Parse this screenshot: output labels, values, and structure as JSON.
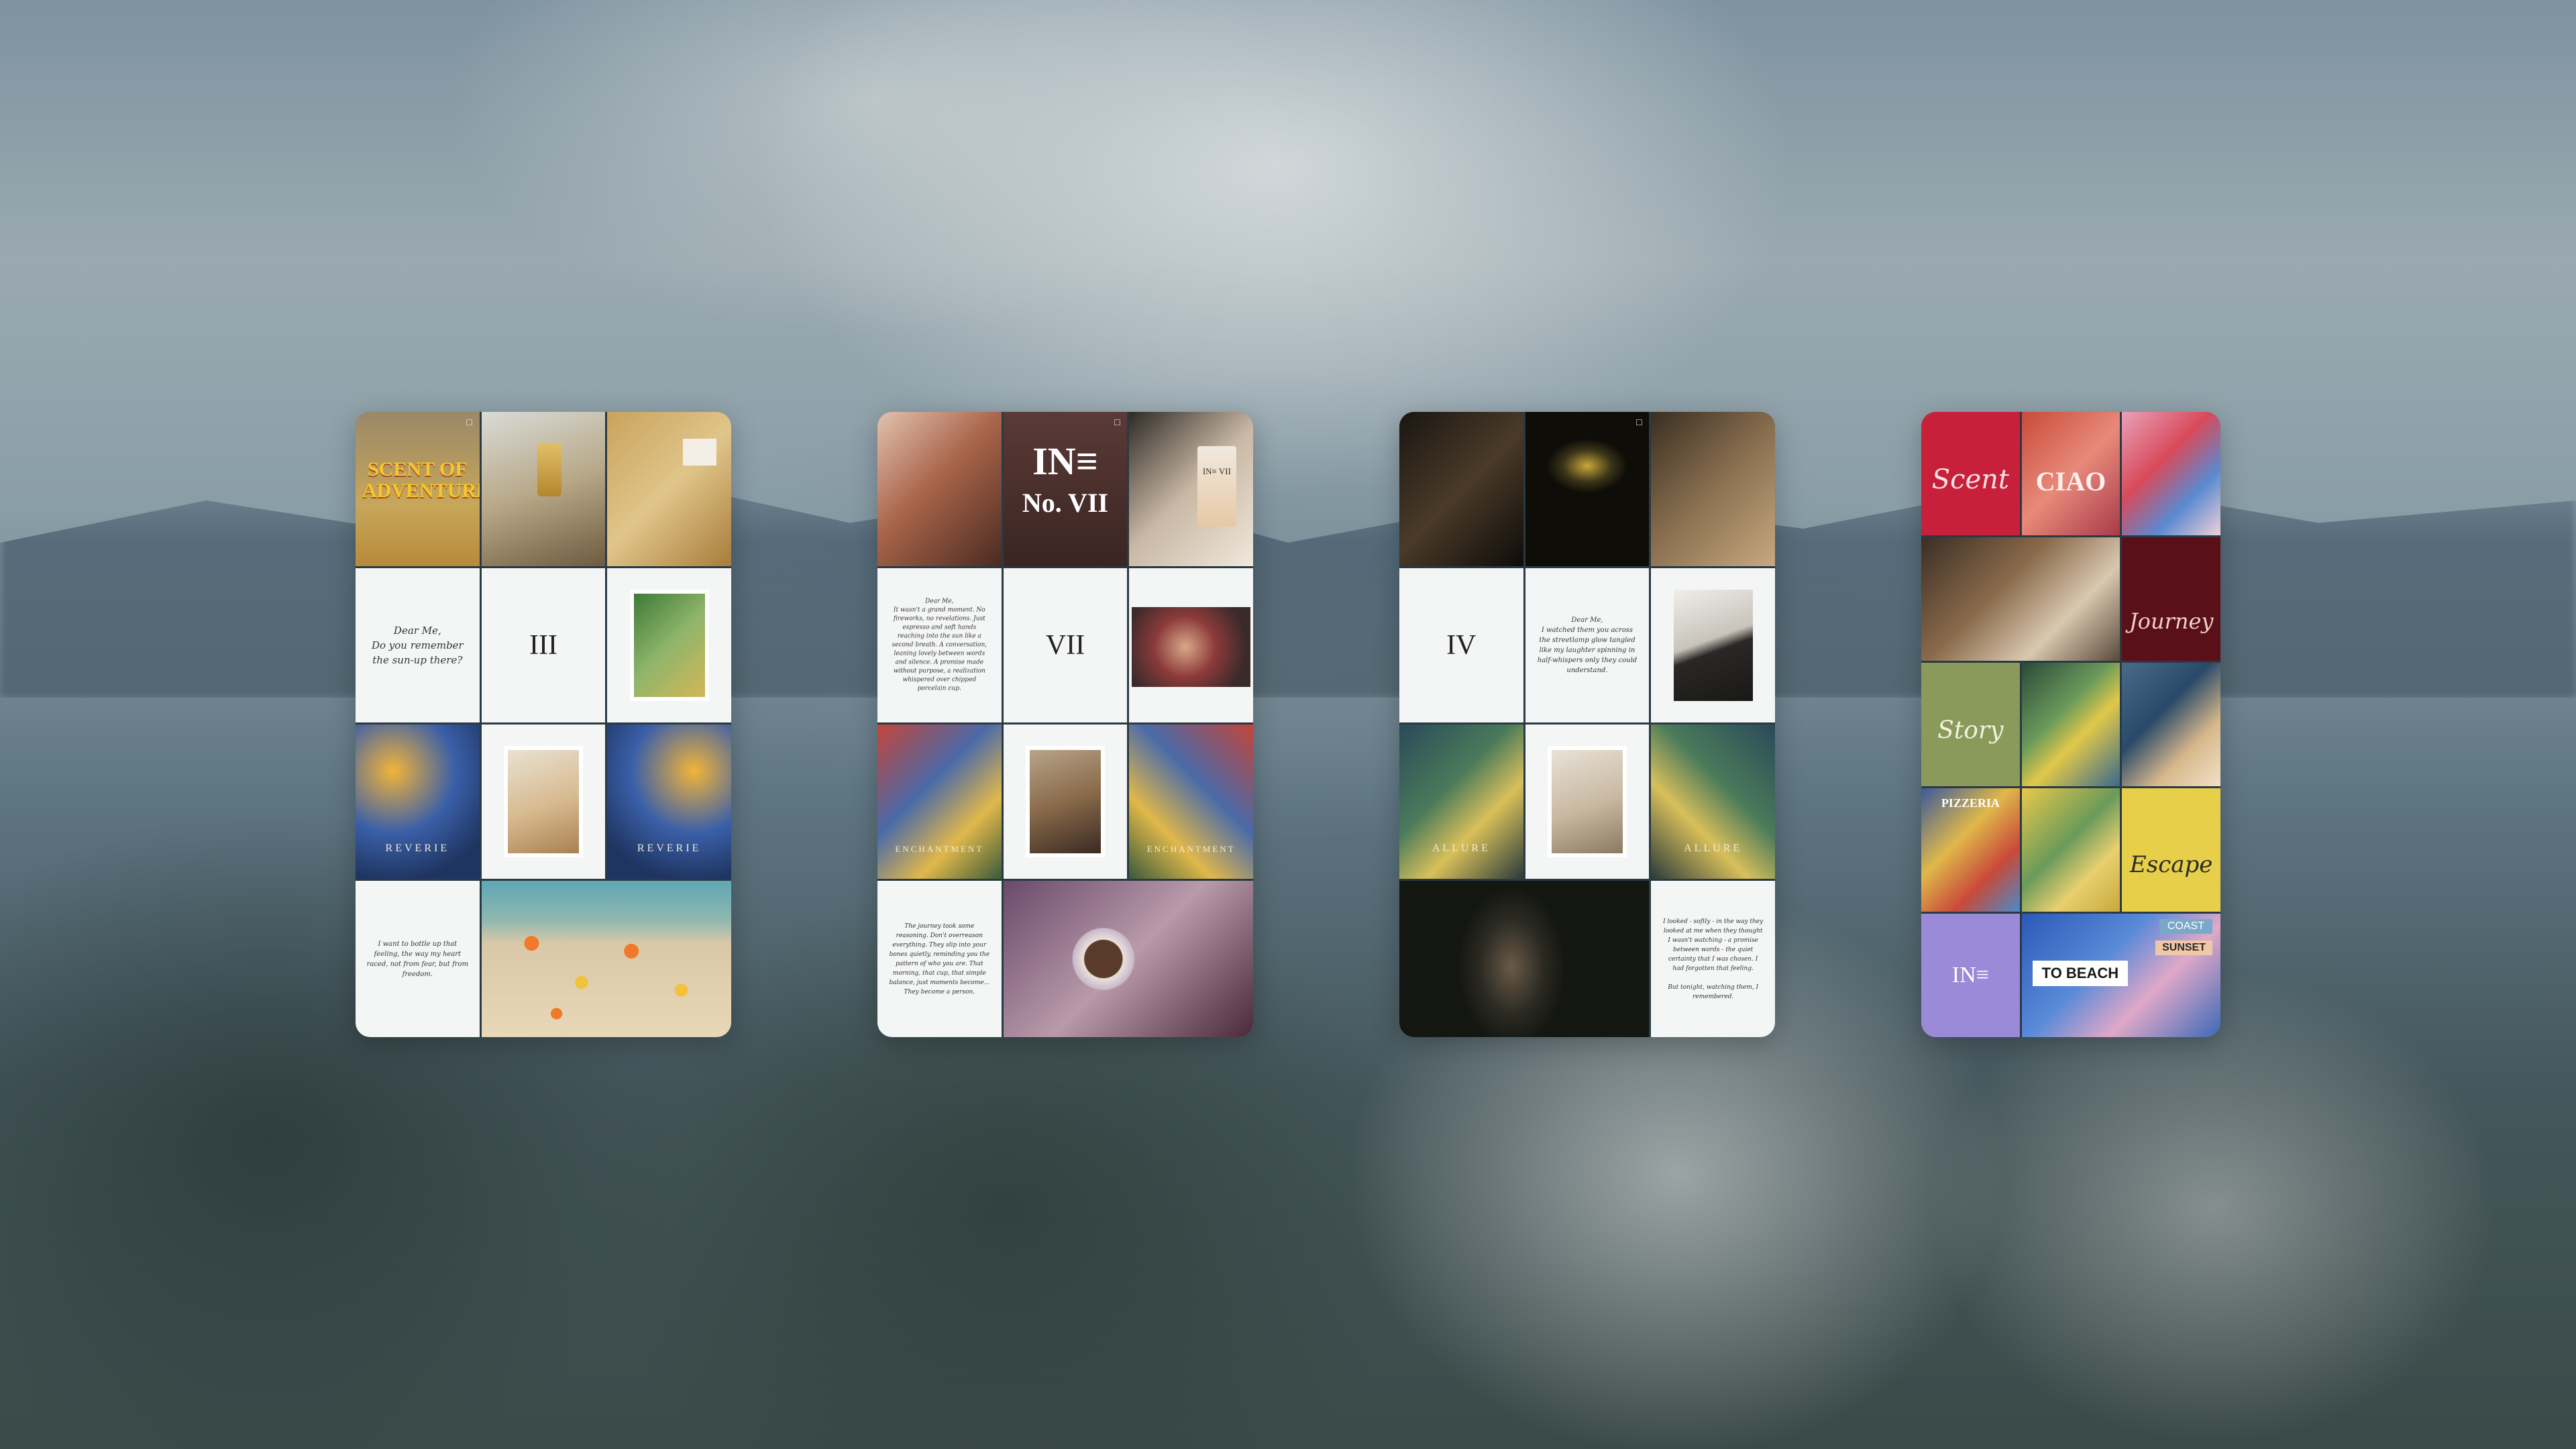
{
  "cards": [
    {
      "numeral": "III",
      "letter_top": "Dear Me,\nDo you remember the sun-up there?",
      "letter_bottom": "I want to bottle up that feeling, the way my heart raced, not from fear, but from freedom.",
      "adventure_text": "SCENT OF ADVENTURE",
      "caption_left": "REVERIE",
      "caption_right": "REVERIE"
    },
    {
      "numeral": "VII",
      "logo": "IN≡",
      "no_label": "No. VII",
      "bottle_label": "IN≡ VII",
      "letter_top": "Dear Me,\nIt wasn't a grand moment. No fireworks, no revelations. Just espresso and soft hands reaching into the sun like a second breath. A conversation, leaning lovely between words and silence. A promise made without purpose, a realization whispered over chipped porcelain cup.",
      "letter_bottom": "The journey took some reasoning. Don't overreason everything. They slip into your bones quietly, reminding you the pattern of who you are. That morning, that cup, that simple balance, just moments become... They become a person.",
      "caption_left": "ENCHANTMENT",
      "caption_right": "ENCHANTMENT"
    },
    {
      "numeral": "IV",
      "letter_top": "Dear Me,\nI watched them you across the streetlamp glow tangled like my laughter spinning in half-whispers only they could understand.",
      "letter_bottom": "I looked - softly - in the way they looked at me when they thought I wasn't watching - a promise between words - the quiet certainty that I was chosen. I had forgotten that feeling.\n\nBut tonight, watching them, I remembered.",
      "caption_left": "ALLURE",
      "caption_right": "ALLURE"
    },
    {
      "words": [
        "Scent",
        "Journey",
        "Story",
        "Escape"
      ],
      "ciao": "CIAO",
      "logo": "IN≡",
      "to_beach": "TO BEACH",
      "pizzeria": "PIZZERIA",
      "coast": "COAST",
      "sunset": "SUNSET"
    }
  ]
}
